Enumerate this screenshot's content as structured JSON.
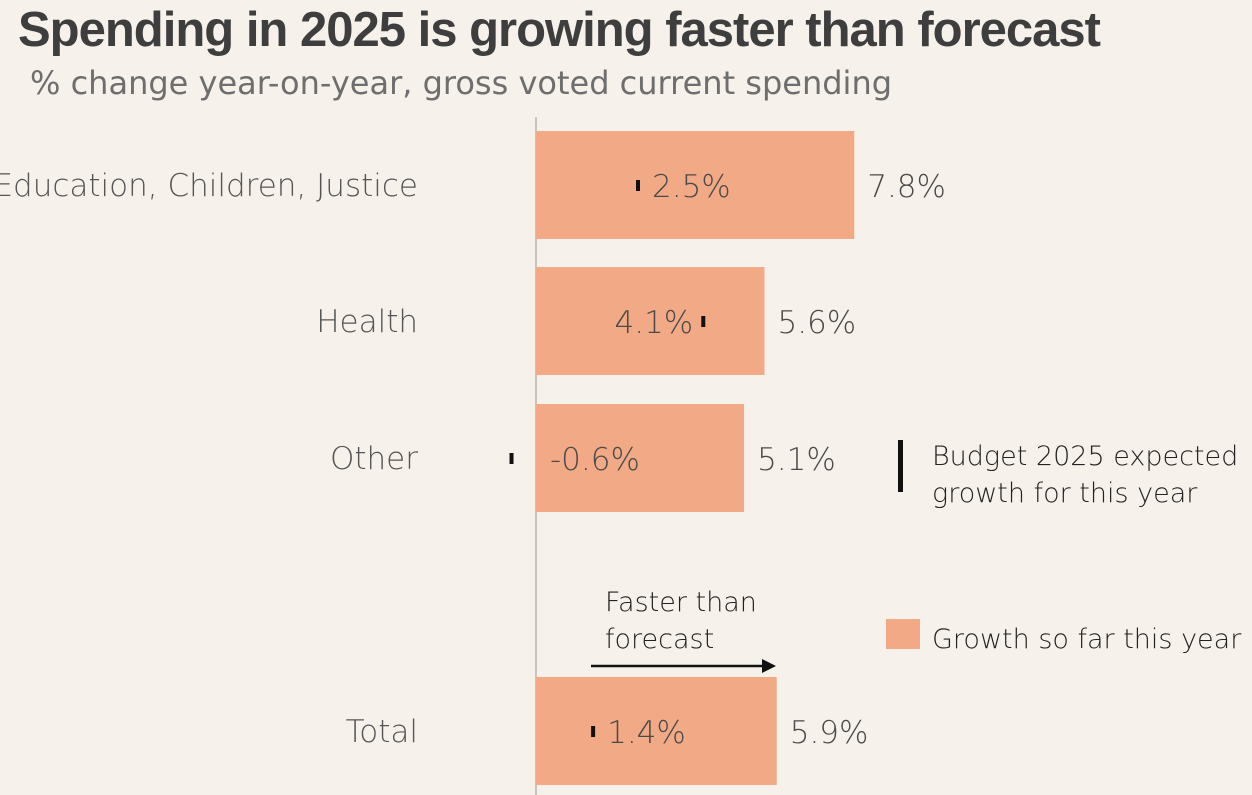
{
  "chart_data": {
    "type": "bar",
    "orientation": "horizontal",
    "title": "Spending in 2025 is growing faster than forecast",
    "subtitle": "% change year-on-year, gross voted current spending",
    "categories": [
      "Education, Children, Justice",
      "Health",
      "Other",
      "Total"
    ],
    "series": [
      {
        "name": "Growth so far this year",
        "values": [
          7.8,
          5.6,
          5.1,
          5.9
        ],
        "labels": [
          "7.8%",
          "5.6%",
          "5.1%",
          "5.9%"
        ],
        "color": "#f2a985"
      },
      {
        "name": "Budget 2025 expected growth for this year",
        "values": [
          2.5,
          4.1,
          -0.6,
          1.4
        ],
        "labels": [
          "2.5%",
          "4.1%",
          "-0.6%",
          "1.4%"
        ],
        "color": "#111111"
      }
    ],
    "legend": {
      "position": "right",
      "marker_entry": [
        "Budget 2025 expected",
        "growth for this year"
      ],
      "bar_entry": "Growth so far this year"
    },
    "annotation": {
      "lines": [
        "Faster than",
        "forecast"
      ]
    },
    "grid": false,
    "colors": {
      "background": "#f6f1ea",
      "bar": "#f2a985",
      "marker": "#111111",
      "axis": "#c9c4bd"
    }
  }
}
